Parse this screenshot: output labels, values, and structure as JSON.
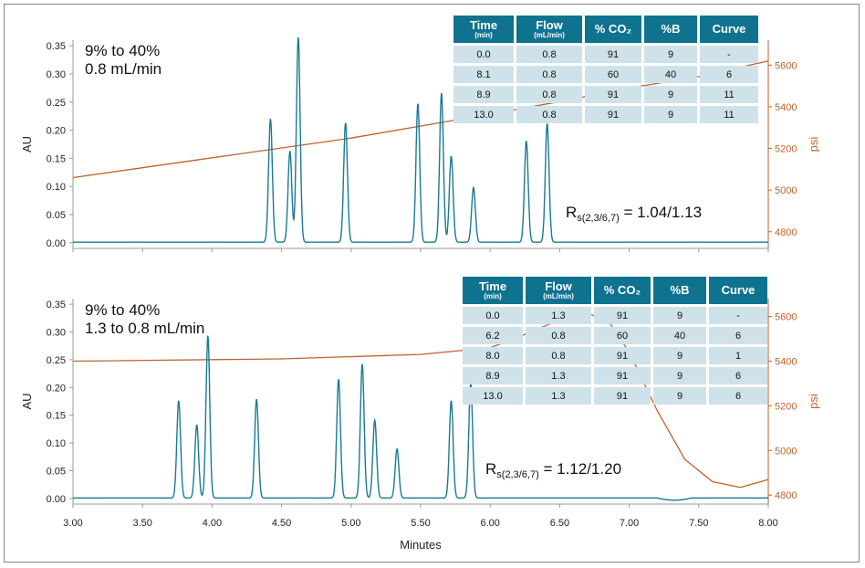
{
  "colors": {
    "trace": "#1a7a93",
    "pressure": "#c0622a",
    "header_bg": "#0f7390",
    "cell_bg": "#cfe2ea"
  },
  "x_label": "Minutes",
  "chart_data": [
    {
      "type": "line",
      "annotation": {
        "line1": "9% to 40%",
        "line2": "0.8 mL/min"
      },
      "resolution": {
        "label": "1.04/1.13",
        "prefix": "R",
        "subscript": "s(2,3/6,7)"
      },
      "ylabel": "AU",
      "y2label": "psi",
      "xlim": [
        3.0,
        8.0
      ],
      "ylim": [
        -0.01,
        0.36
      ],
      "y2lim": [
        4720,
        5720
      ],
      "x_ticks": [
        "3.00",
        "3.50",
        "4.00",
        "4.50",
        "5.00",
        "5.50",
        "6.00",
        "6.50",
        "7.00",
        "7.50",
        "8.00"
      ],
      "y_ticks": [
        "0.00",
        "0.05",
        "0.10",
        "0.15",
        "0.20",
        "0.25",
        "0.30",
        "0.35"
      ],
      "y2_ticks": [
        "4800",
        "5000",
        "5200",
        "5400",
        "5600"
      ],
      "baseline": 0.001,
      "peaks": [
        [
          4.42,
          0.219
        ],
        [
          4.56,
          0.162
        ],
        [
          4.62,
          0.364
        ],
        [
          4.96,
          0.212
        ],
        [
          5.48,
          0.246
        ],
        [
          5.65,
          0.265
        ],
        [
          5.72,
          0.153
        ],
        [
          5.88,
          0.097
        ],
        [
          6.26,
          0.18
        ],
        [
          6.41,
          0.211
        ]
      ],
      "pressure_series": [
        [
          3.0,
          5060
        ],
        [
          4.0,
          5155
        ],
        [
          5.0,
          5250
        ],
        [
          6.0,
          5365
        ],
        [
          6.5,
          5425
        ],
        [
          7.0,
          5490
        ],
        [
          7.5,
          5545
        ],
        [
          8.0,
          5620
        ]
      ],
      "table": {
        "headers": [
          {
            "main": "Time",
            "sub": "(min)"
          },
          {
            "main": "Flow",
            "sub": "(mL/min)"
          },
          {
            "main": "% CO₂",
            "sub": ""
          },
          {
            "main": "%B",
            "sub": ""
          },
          {
            "main": "Curve",
            "sub": ""
          }
        ],
        "rows": [
          [
            "0.0",
            "0.8",
            "91",
            "9",
            "-"
          ],
          [
            "8.1",
            "0.8",
            "60",
            "40",
            "6"
          ],
          [
            "8.9",
            "0.8",
            "91",
            "9",
            "11"
          ],
          [
            "13.0",
            "0.8",
            "91",
            "9",
            "11"
          ]
        ]
      }
    },
    {
      "type": "line",
      "annotation": {
        "line1": "9% to 40%",
        "line2": "1.3 to 0.8 mL/min"
      },
      "resolution": {
        "label": "1.12/1.20",
        "prefix": "R",
        "subscript": "s(2,3/6,7)"
      },
      "ylabel": "AU",
      "y2label": "psi",
      "xlim": [
        3.0,
        8.0
      ],
      "ylim": [
        -0.01,
        0.36
      ],
      "y2lim": [
        4760,
        5680
      ],
      "x_ticks": [
        "3.00",
        "3.50",
        "4.00",
        "4.50",
        "5.00",
        "5.50",
        "6.00",
        "6.50",
        "7.00",
        "7.50",
        "8.00"
      ],
      "y_ticks": [
        "0.00",
        "0.05",
        "0.10",
        "0.15",
        "0.20",
        "0.25",
        "0.30",
        "0.35"
      ],
      "y2_ticks": [
        "4800",
        "5000",
        "5200",
        "5400",
        "5600"
      ],
      "baseline": 0.001,
      "peaks": [
        [
          3.76,
          0.175
        ],
        [
          3.89,
          0.132
        ],
        [
          3.97,
          0.292
        ],
        [
          4.32,
          0.178
        ],
        [
          4.91,
          0.214
        ],
        [
          5.08,
          0.241
        ],
        [
          5.17,
          0.14
        ],
        [
          5.33,
          0.088
        ],
        [
          5.72,
          0.175
        ],
        [
          5.86,
          0.206
        ]
      ],
      "pressure_series": [
        [
          3.0,
          5400
        ],
        [
          4.5,
          5410
        ],
        [
          5.5,
          5430
        ],
        [
          6.0,
          5460
        ],
        [
          6.25,
          5520
        ],
        [
          6.5,
          5585
        ],
        [
          6.7,
          5615
        ],
        [
          6.85,
          5580
        ],
        [
          7.0,
          5440
        ],
        [
          7.2,
          5180
        ],
        [
          7.4,
          4960
        ],
        [
          7.6,
          4860
        ],
        [
          7.8,
          4835
        ],
        [
          8.0,
          4870
        ]
      ],
      "table": {
        "headers": [
          {
            "main": "Time",
            "sub": "(min)"
          },
          {
            "main": "Flow",
            "sub": "(mL/min)"
          },
          {
            "main": "% CO₂",
            "sub": ""
          },
          {
            "main": "%B",
            "sub": ""
          },
          {
            "main": "Curve",
            "sub": ""
          }
        ],
        "rows": [
          [
            "0.0",
            "1.3",
            "91",
            "9",
            "-"
          ],
          [
            "6.2",
            "0.8",
            "60",
            "40",
            "6"
          ],
          [
            "8.0",
            "0.8",
            "91",
            "9",
            "1"
          ],
          [
            "8.9",
            "1.3",
            "91",
            "9",
            "6"
          ],
          [
            "13.0",
            "1.3",
            "91",
            "9",
            "6"
          ]
        ]
      }
    }
  ]
}
